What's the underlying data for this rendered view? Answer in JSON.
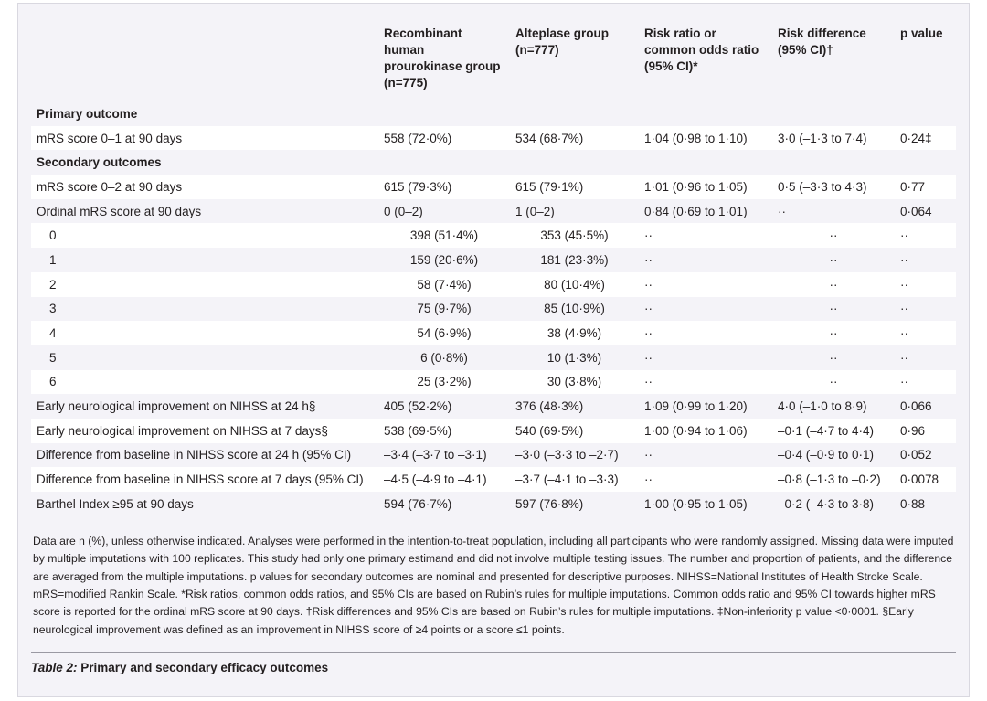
{
  "table": {
    "headers": [
      "",
      "Recombinant human prourokinase group (n=775)",
      "Alteplase group (n=777)",
      "Risk ratio or common odds ratio (95% CI)*",
      "Risk difference (95% CI)†",
      "p value"
    ],
    "rows": [
      {
        "kind": "section",
        "cells": [
          "Primary outcome",
          "",
          "",
          "",
          "",
          ""
        ]
      },
      {
        "kind": "data",
        "cells": [
          "mRS score 0–1 at 90 days",
          "558 (72·0%)",
          "534 (68·7%)",
          "1·04 (0·98 to 1·10)",
          "3·0 (–1·3 to 7·4)",
          "0·24‡"
        ]
      },
      {
        "kind": "section",
        "cells": [
          "Secondary outcomes",
          "",
          "",
          "",
          "",
          ""
        ]
      },
      {
        "kind": "data",
        "cells": [
          "mRS score 0–2 at 90 days",
          "615 (79·3%)",
          "615 (79·1%)",
          "1·01 (0·96 to 1·05)",
          "0·5 (–3·3 to 4·3)",
          "0·77"
        ]
      },
      {
        "kind": "data",
        "cells": [
          "Ordinal mRS score at 90 days",
          "0 (0–2)",
          "1 (0–2)",
          "0·84 (0·69 to 1·01)",
          "··",
          "0·064"
        ]
      },
      {
        "kind": "sub",
        "cells": [
          "0",
          "398 (51·4%)",
          "353 (45·5%)",
          "··",
          "··",
          "··"
        ]
      },
      {
        "kind": "sub",
        "cells": [
          "1",
          "159 (20·6%)",
          "181 (23·3%)",
          "··",
          "··",
          "··"
        ]
      },
      {
        "kind": "sub",
        "cells": [
          "2",
          "58 (7·4%)",
          "80 (10·4%)",
          "··",
          "··",
          "··"
        ]
      },
      {
        "kind": "sub",
        "cells": [
          "3",
          "75 (9·7%)",
          "85 (10·9%)",
          "··",
          "··",
          "··"
        ]
      },
      {
        "kind": "sub",
        "cells": [
          "4",
          "54 (6·9%)",
          "38 (4·9%)",
          "··",
          "··",
          "··"
        ]
      },
      {
        "kind": "sub",
        "cells": [
          "5",
          "6 (0·8%)",
          "10 (1·3%)",
          "··",
          "··",
          "··"
        ]
      },
      {
        "kind": "sub",
        "cells": [
          "6",
          "25 (3·2%)",
          "30 (3·8%)",
          "··",
          "··",
          "··"
        ]
      },
      {
        "kind": "data",
        "cells": [
          "Early neurological improvement on NIHSS at 24 h§",
          "405 (52·2%)",
          "376 (48·3%)",
          "1·09 (0·99 to 1·20)",
          "4·0 (–1·0 to 8·9)",
          "0·066"
        ]
      },
      {
        "kind": "data",
        "cells": [
          "Early neurological improvement on NIHSS at 7 days§",
          "538 (69·5%)",
          "540 (69·5%)",
          "1·00 (0·94 to 1·06)",
          "–0·1 (–4·7 to 4·4)",
          "0·96"
        ]
      },
      {
        "kind": "data",
        "cells": [
          "Difference from baseline in NIHSS score at 24 h (95% CI)",
          "–3·4 (–3·7 to –3·1)",
          "–3·0 (–3·3 to –2·7)",
          "··",
          "–0·4 (–0·9 to 0·1)",
          "0·052"
        ]
      },
      {
        "kind": "data",
        "cells": [
          "Difference from baseline in NIHSS score at 7 days (95% CI)",
          "–4·5 (–4·9 to –4·1)",
          "–3·7 (–4·1 to –3·3)",
          "··",
          "–0·8 (–1·3 to –0·2)",
          "0·0078"
        ]
      },
      {
        "kind": "data",
        "cells": [
          "Barthel Index ≥95 at 90 days",
          "594 (76·7%)",
          "597 (76·8%)",
          "1·00 (0·95 to 1·05)",
          "–0·2 (–4·3 to 3·8)",
          "0·88"
        ]
      }
    ]
  },
  "footnote": "Data are n (%), unless otherwise indicated. Analyses were performed in the intention-to-treat population, including all participants who were randomly assigned. Missing data were imputed by multiple imputations with 100 replicates. This study had only one primary estimand and did not involve multiple testing issues. The number and proportion of patients, and the difference are averaged from the multiple imputations. p values for secondary outcomes are nominal and presented for descriptive purposes. NIHSS=National Institutes of Health Stroke Scale. mRS=modified Rankin Scale. *Risk ratios, common odds ratios, and 95% CIs are based on Rubin’s rules for multiple imputations. Common odds ratio and 95% CI towards higher mRS score is reported for the ordinal mRS score at 90 days. †Risk differences and 95% CIs are based on Rubin’s rules for multiple imputations. ‡Non-inferiority p value <0·0001. §Early neurological improvement was defined as an improvement in NIHSS score of ≥4 points or a score ≤1 points.",
  "caption": {
    "label": "Table 2:",
    "title": "Primary and secondary efficacy outcomes"
  },
  "colors": {
    "frame_bg": "#f4f3f8",
    "band_bg": "#ffffff",
    "rule": "#9a99a3",
    "text": "#231f20"
  }
}
